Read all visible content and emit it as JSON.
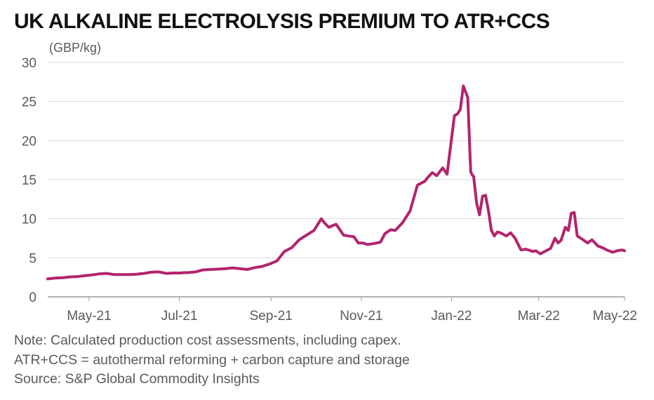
{
  "chart_data": {
    "type": "line",
    "title": "UK ALKALINE ELECTROLYSIS PREMIUM TO ATR+CCS",
    "ylabel": "(GBP/kg)",
    "xlabel": "",
    "ylim": [
      0,
      30
    ],
    "yticks": [
      0,
      5,
      10,
      15,
      20,
      25,
      30
    ],
    "grid": true,
    "xlim_index": [
      0,
      390
    ],
    "xticks": [
      {
        "label": "May-21",
        "index": 28
      },
      {
        "label": "Jul-21",
        "index": 89
      },
      {
        "label": "Sep-21",
        "index": 151
      },
      {
        "label": "Nov-21",
        "index": 212
      },
      {
        "label": "Jan-22",
        "index": 273
      },
      {
        "label": "Mar-22",
        "index": 332
      },
      {
        "label": "May-22",
        "index": 390
      }
    ],
    "series": [
      {
        "name": "UK alkaline electrolysis premium to ATR+CCS",
        "color": "#b3246c",
        "x": [
          0,
          5,
          10,
          15,
          20,
          25,
          30,
          35,
          40,
          45,
          50,
          55,
          60,
          65,
          70,
          75,
          80,
          85,
          90,
          92,
          95,
          100,
          105,
          110,
          115,
          120,
          125,
          130,
          135,
          140,
          145,
          150,
          155,
          160,
          165,
          170,
          180,
          185,
          187,
          190,
          195,
          200,
          203,
          207,
          210,
          213,
          216,
          220,
          225,
          228,
          232,
          235,
          240,
          245,
          250,
          255,
          257,
          260,
          263,
          267,
          270,
          275,
          277,
          279,
          281,
          284,
          286,
          287,
          288,
          290,
          292,
          294,
          296,
          298,
          300,
          302,
          304,
          306,
          308,
          310,
          313,
          316,
          320,
          323,
          325,
          328,
          330,
          333,
          336,
          340,
          343,
          345,
          347,
          350,
          352,
          354,
          356,
          358,
          362,
          365,
          368,
          372,
          375,
          378,
          382,
          385,
          388,
          390
        ],
        "values": [
          2.3,
          2.4,
          2.45,
          2.55,
          2.6,
          2.7,
          2.8,
          2.95,
          3.0,
          2.85,
          2.85,
          2.85,
          2.9,
          3.0,
          3.15,
          3.2,
          3.0,
          3.05,
          3.05,
          3.1,
          3.1,
          3.2,
          3.45,
          3.5,
          3.55,
          3.6,
          3.7,
          3.6,
          3.5,
          3.75,
          3.9,
          4.2,
          4.6,
          5.8,
          6.3,
          7.3,
          8.5,
          10.0,
          9.5,
          8.9,
          9.3,
          7.9,
          7.8,
          7.7,
          6.9,
          6.9,
          6.7,
          6.8,
          7.0,
          8.1,
          8.6,
          8.5,
          9.5,
          11.0,
          14.3,
          14.8,
          15.3,
          15.9,
          15.5,
          16.5,
          15.7,
          23.2,
          23.4,
          24.0,
          27.0,
          25.5,
          16.0,
          15.6,
          15.4,
          12.0,
          10.5,
          12.9,
          13.0,
          11.0,
          8.5,
          7.8,
          8.3,
          8.2,
          8.0,
          7.8,
          8.2,
          7.5,
          6.0,
          6.1,
          6.0,
          5.8,
          5.9,
          5.5,
          5.8,
          6.2,
          7.5,
          6.9,
          7.2,
          8.9,
          8.5,
          10.7,
          10.8,
          7.8,
          7.3,
          6.9,
          7.3,
          6.5,
          6.3,
          6.0,
          5.7,
          5.9,
          6.0,
          5.9
        ]
      }
    ]
  },
  "notes": [
    "Note: Calculated production cost assessments, including capex.",
    "ATR+CCS = autothermal reforming + carbon capture and storage",
    "Source: S&P Global Commodity Insights"
  ],
  "colors": {
    "line": "#b3246c",
    "grid": "#d9d9d9",
    "axis": "#9a9a9a",
    "text": "#5a5a5a"
  }
}
